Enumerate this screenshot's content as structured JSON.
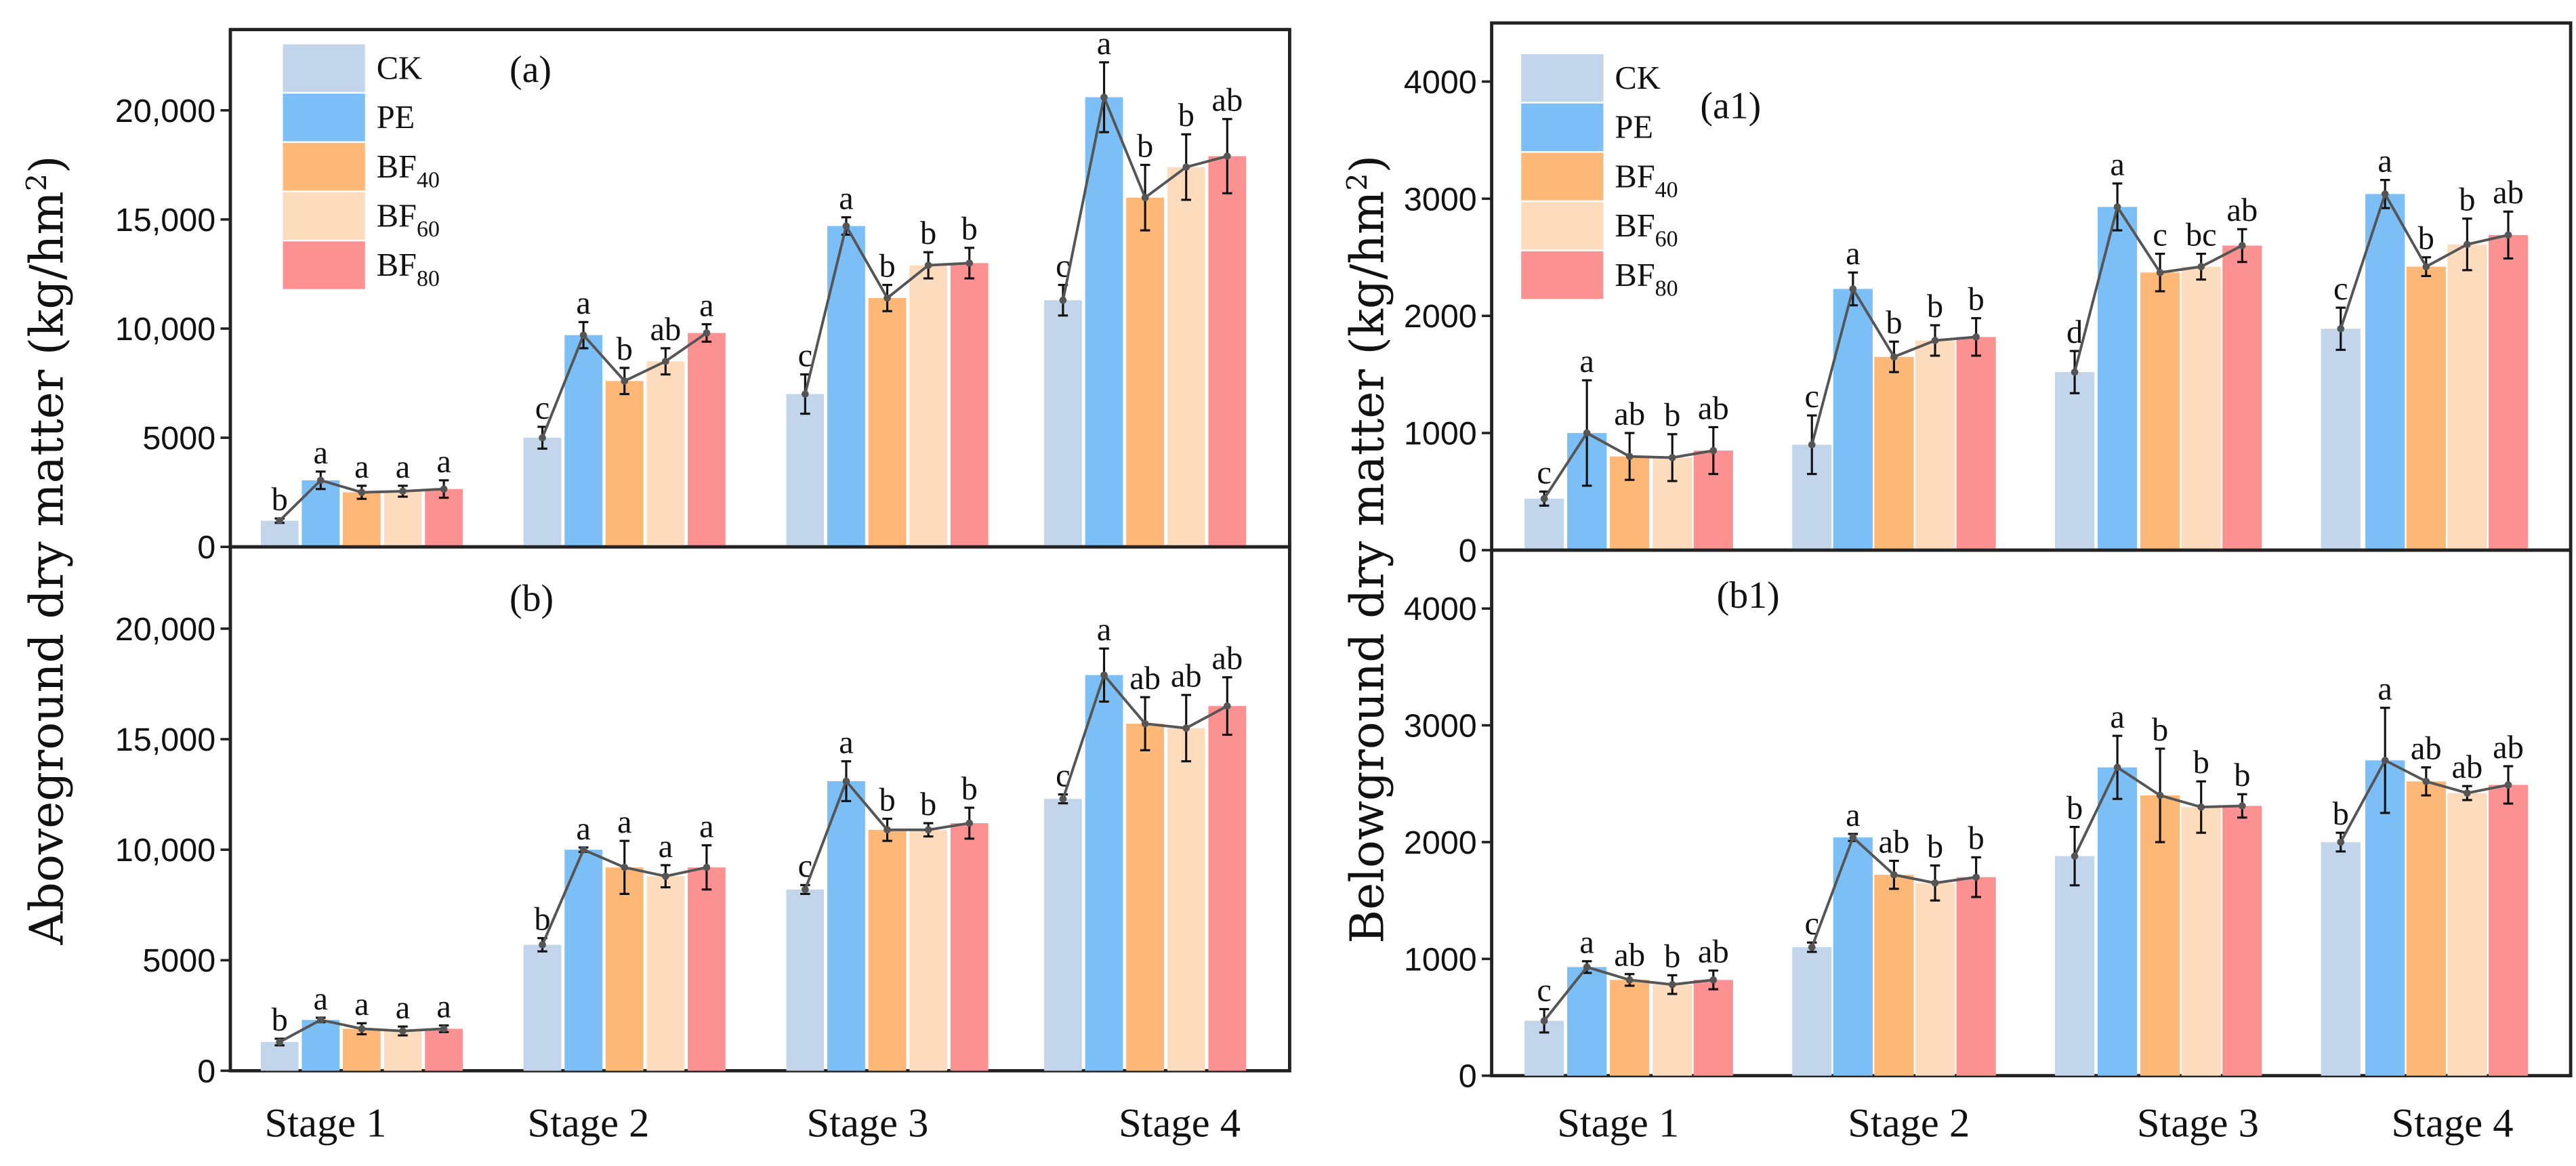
{
  "chart_data": [
    {
      "type": "bar",
      "panel": "(a)",
      "ylabel": "Aboveground dry matter (kg/hm²)",
      "categories": [
        "Stage 1",
        "Stage 2",
        "Stage 3",
        "Stage 4"
      ],
      "ylim": [
        0,
        23700
      ],
      "yticks": [
        {
          "v": 0,
          "t": "0"
        },
        {
          "v": 5000,
          "t": "5000"
        },
        {
          "v": 10000,
          "t": "10,000"
        },
        {
          "v": 15000,
          "t": "15,000"
        },
        {
          "v": 20000,
          "t": "20,000"
        }
      ],
      "legend": [
        "CK",
        "PE",
        "BF40",
        "BF60",
        "BF80"
      ],
      "series": [
        {
          "name": "CK",
          "values": [
            1200,
            5000,
            7000,
            11300
          ],
          "errors": [
            100,
            500,
            900,
            700
          ],
          "letters": [
            "b",
            "c",
            "c",
            "c"
          ]
        },
        {
          "name": "PE",
          "values": [
            3050,
            9700,
            14700,
            20600
          ],
          "errors": [
            400,
            600,
            400,
            1600
          ],
          "letters": [
            "a",
            "a",
            "a",
            "a"
          ]
        },
        {
          "name": "BF40",
          "values": [
            2500,
            7600,
            11400,
            16000
          ],
          "errors": [
            300,
            600,
            600,
            1500
          ],
          "letters": [
            "a",
            "b",
            "b",
            "b"
          ]
        },
        {
          "name": "BF60",
          "values": [
            2550,
            8500,
            12900,
            17400
          ],
          "errors": [
            250,
            600,
            600,
            1500
          ],
          "letters": [
            "a",
            "ab",
            "b",
            "b"
          ]
        },
        {
          "name": "BF80",
          "values": [
            2650,
            9800,
            13000,
            17900
          ],
          "errors": [
            400,
            400,
            700,
            1700
          ],
          "letters": [
            "a",
            "a",
            "b",
            "ab"
          ]
        }
      ]
    },
    {
      "type": "bar",
      "panel": "(b)",
      "categories": [
        "Stage 1",
        "Stage 2",
        "Stage 3",
        "Stage 4"
      ],
      "ylim": [
        0,
        23700
      ],
      "yticks": [
        {
          "v": 0,
          "t": "0"
        },
        {
          "v": 5000,
          "t": "5000"
        },
        {
          "v": 10000,
          "t": "10,000"
        },
        {
          "v": 15000,
          "t": "15,000"
        },
        {
          "v": 20000,
          "t": "20,000"
        }
      ],
      "series": [
        {
          "name": "CK",
          "values": [
            1300,
            5700,
            8200,
            12300
          ],
          "errors": [
            150,
            300,
            200,
            200
          ],
          "letters": [
            "b",
            "b",
            "c",
            "c"
          ]
        },
        {
          "name": "PE",
          "values": [
            2300,
            10000,
            13100,
            17900
          ],
          "errors": [
            100,
            100,
            900,
            1200
          ],
          "letters": [
            "a",
            "a",
            "a",
            "a"
          ]
        },
        {
          "name": "BF40",
          "values": [
            1900,
            9200,
            10900,
            15700
          ],
          "errors": [
            250,
            1200,
            500,
            1200
          ],
          "letters": [
            "a",
            "a",
            "b",
            "ab"
          ]
        },
        {
          "name": "BF60",
          "values": [
            1800,
            8800,
            10900,
            15500
          ],
          "errors": [
            200,
            500,
            300,
            1500
          ],
          "letters": [
            "a",
            "a",
            "b",
            "ab"
          ]
        },
        {
          "name": "BF80",
          "values": [
            1900,
            9200,
            11200,
            16500
          ],
          "errors": [
            150,
            1000,
            700,
            1300
          ],
          "letters": [
            "a",
            "a",
            "b",
            "ab"
          ]
        }
      ]
    },
    {
      "type": "bar",
      "panel": "(a1)",
      "ylabel": "Belowground dry matter (kg/hm²)",
      "categories": [
        "Stage 1",
        "Stage 2",
        "Stage 3",
        "Stage 4"
      ],
      "ylim": [
        0,
        4500
      ],
      "yticks": [
        {
          "v": 0,
          "t": "0"
        },
        {
          "v": 1000,
          "t": "1000"
        },
        {
          "v": 2000,
          "t": "2000"
        },
        {
          "v": 3000,
          "t": "3000"
        },
        {
          "v": 4000,
          "t": "4000"
        }
      ],
      "legend": [
        "CK",
        "PE",
        "BF40",
        "BF60",
        "BF80"
      ],
      "series": [
        {
          "name": "CK",
          "values": [
            440,
            900,
            1520,
            1890
          ],
          "errors": [
            60,
            250,
            180,
            180
          ],
          "letters": [
            "c",
            "c",
            "d",
            "c"
          ]
        },
        {
          "name": "PE",
          "values": [
            1000,
            2230,
            2930,
            3040
          ],
          "errors": [
            450,
            140,
            200,
            120
          ],
          "letters": [
            "a",
            "a",
            "a",
            "a"
          ]
        },
        {
          "name": "BF40",
          "values": [
            800,
            1650,
            2370,
            2420
          ],
          "errors": [
            200,
            130,
            160,
            80
          ],
          "letters": [
            "ab",
            "b",
            "c",
            "b"
          ]
        },
        {
          "name": "BF60",
          "values": [
            790,
            1790,
            2420,
            2610
          ],
          "errors": [
            200,
            130,
            110,
            220
          ],
          "letters": [
            "b",
            "b",
            "bc",
            "b"
          ]
        },
        {
          "name": "BF80",
          "values": [
            850,
            1820,
            2600,
            2690
          ],
          "errors": [
            200,
            160,
            140,
            200
          ],
          "letters": [
            "ab",
            "b",
            "ab",
            "ab"
          ]
        }
      ]
    },
    {
      "type": "bar",
      "panel": "(b1)",
      "categories": [
        "Stage 1",
        "Stage 2",
        "Stage 3",
        "Stage 4"
      ],
      "ylim": [
        0,
        4500
      ],
      "yticks": [
        {
          "v": 0,
          "t": "0"
        },
        {
          "v": 1000,
          "t": "1000"
        },
        {
          "v": 2000,
          "t": "2000"
        },
        {
          "v": 3000,
          "t": "3000"
        },
        {
          "v": 4000,
          "t": "4000"
        }
      ],
      "series": [
        {
          "name": "CK",
          "values": [
            470,
            1100,
            1880,
            2000
          ],
          "errors": [
            100,
            40,
            250,
            80
          ],
          "letters": [
            "c",
            "c",
            "b",
            "b"
          ]
        },
        {
          "name": "PE",
          "values": [
            930,
            2040,
            2640,
            2700
          ],
          "errors": [
            50,
            30,
            270,
            450
          ],
          "letters": [
            "a",
            "a",
            "a",
            "a"
          ]
        },
        {
          "name": "BF40",
          "values": [
            820,
            1720,
            2400,
            2520
          ],
          "errors": [
            50,
            120,
            400,
            120
          ],
          "letters": [
            "ab",
            "ab",
            "b",
            "ab"
          ]
        },
        {
          "name": "BF60",
          "values": [
            780,
            1650,
            2300,
            2420
          ],
          "errors": [
            80,
            150,
            220,
            60
          ],
          "letters": [
            "b",
            "b",
            "b",
            "ab"
          ]
        },
        {
          "name": "BF80",
          "values": [
            820,
            1700,
            2310,
            2490
          ],
          "errors": [
            80,
            170,
            100,
            160
          ],
          "letters": [
            "ab",
            "b",
            "b",
            "ab"
          ]
        }
      ]
    }
  ],
  "colors": {
    "CK": "#c2d5ea",
    "PE": "#7cbef6",
    "BF40": "#fdb877",
    "BF60": "#fddcbd",
    "BF80": "#fc9192",
    "line": "#555555"
  }
}
